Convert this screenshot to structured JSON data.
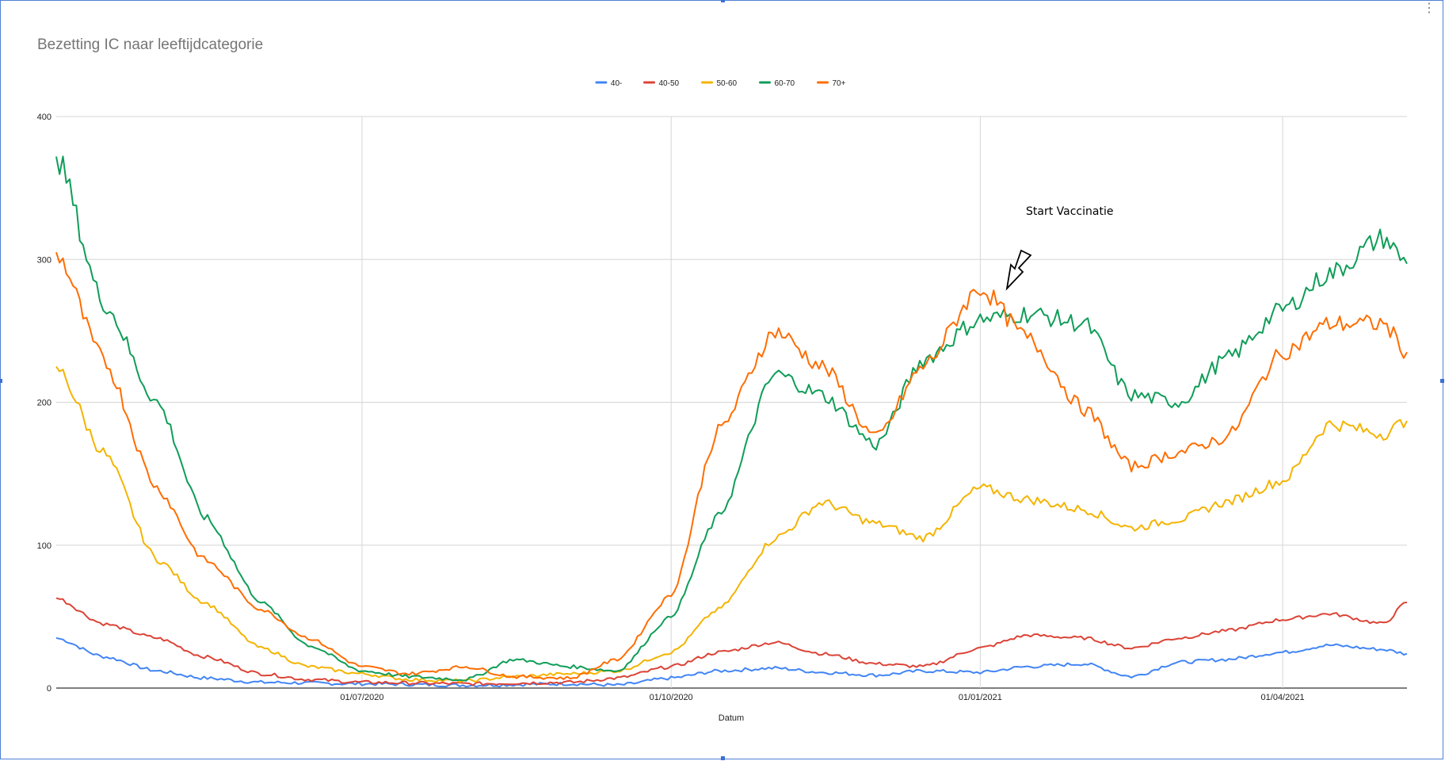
{
  "chart_data": {
    "type": "line",
    "title": "Bezetting IC naar leeftijdcategorie",
    "xlabel": "Datum",
    "ylabel": "",
    "ylim": [
      0,
      400
    ],
    "yticks": [
      0,
      100,
      200,
      300,
      400
    ],
    "xrange": [
      "2020-04-01",
      "2021-05-08"
    ],
    "xticks": [
      {
        "date": "2020-07-01",
        "label": "01/07/2020"
      },
      {
        "date": "2020-10-01",
        "label": "01/10/2020"
      },
      {
        "date": "2021-01-01",
        "label": "01/01/2021"
      },
      {
        "date": "2021-04-01",
        "label": "01/04/2021"
      }
    ],
    "grid": true,
    "legend_position": "top",
    "annotation": {
      "text": "Start Vaccinatie",
      "date": "2021-01-18",
      "value": 280
    },
    "series": [
      {
        "name": "40-",
        "color": "#4285f4",
        "points": [
          [
            "2020-04-01",
            35
          ],
          [
            "2020-04-15",
            22
          ],
          [
            "2020-05-01",
            12
          ],
          [
            "2020-05-15",
            7
          ],
          [
            "2020-06-01",
            4
          ],
          [
            "2020-07-01",
            3
          ],
          [
            "2020-08-01",
            2
          ],
          [
            "2020-09-01",
            3
          ],
          [
            "2020-09-15",
            2
          ],
          [
            "2020-10-01",
            7
          ],
          [
            "2020-10-15",
            12
          ],
          [
            "2020-11-01",
            14
          ],
          [
            "2020-11-15",
            11
          ],
          [
            "2020-12-01",
            9
          ],
          [
            "2020-12-15",
            12
          ],
          [
            "2021-01-01",
            11
          ],
          [
            "2021-01-15",
            15
          ],
          [
            "2021-02-01",
            17
          ],
          [
            "2021-02-15",
            8
          ],
          [
            "2021-03-01",
            18
          ],
          [
            "2021-03-15",
            20
          ],
          [
            "2021-04-01",
            25
          ],
          [
            "2021-04-15",
            30
          ],
          [
            "2021-05-01",
            27
          ],
          [
            "2021-05-08",
            24
          ]
        ]
      },
      {
        "name": "40-50",
        "color": "#db4437",
        "points": [
          [
            "2020-04-01",
            63
          ],
          [
            "2020-04-15",
            45
          ],
          [
            "2020-05-01",
            35
          ],
          [
            "2020-05-15",
            22
          ],
          [
            "2020-06-01",
            10
          ],
          [
            "2020-06-15",
            6
          ],
          [
            "2020-07-01",
            4
          ],
          [
            "2020-08-01",
            3
          ],
          [
            "2020-09-01",
            4
          ],
          [
            "2020-09-15",
            7
          ],
          [
            "2020-10-01",
            15
          ],
          [
            "2020-10-15",
            25
          ],
          [
            "2020-11-01",
            32
          ],
          [
            "2020-11-15",
            24
          ],
          [
            "2020-12-01",
            17
          ],
          [
            "2020-12-15",
            15
          ],
          [
            "2021-01-01",
            28
          ],
          [
            "2021-01-15",
            37
          ],
          [
            "2021-02-01",
            35
          ],
          [
            "2021-02-15",
            28
          ],
          [
            "2021-03-01",
            35
          ],
          [
            "2021-03-15",
            40
          ],
          [
            "2021-04-01",
            48
          ],
          [
            "2021-04-15",
            52
          ],
          [
            "2021-05-01",
            45
          ],
          [
            "2021-05-08",
            60
          ]
        ]
      },
      {
        "name": "50-60",
        "color": "#f4b400",
        "points": [
          [
            "2020-04-01",
            225
          ],
          [
            "2020-04-15",
            165
          ],
          [
            "2020-05-01",
            90
          ],
          [
            "2020-05-15",
            60
          ],
          [
            "2020-06-01",
            28
          ],
          [
            "2020-06-15",
            15
          ],
          [
            "2020-07-01",
            10
          ],
          [
            "2020-07-15",
            6
          ],
          [
            "2020-08-01",
            5
          ],
          [
            "2020-08-15",
            8
          ],
          [
            "2020-09-01",
            10
          ],
          [
            "2020-09-15",
            12
          ],
          [
            "2020-10-01",
            25
          ],
          [
            "2020-10-15",
            55
          ],
          [
            "2020-11-01",
            105
          ],
          [
            "2020-11-15",
            130
          ],
          [
            "2020-12-01",
            115
          ],
          [
            "2020-12-15",
            105
          ],
          [
            "2021-01-01",
            140
          ],
          [
            "2021-01-15",
            132
          ],
          [
            "2021-02-01",
            125
          ],
          [
            "2021-02-15",
            112
          ],
          [
            "2021-03-01",
            118
          ],
          [
            "2021-03-15",
            130
          ],
          [
            "2021-04-01",
            145
          ],
          [
            "2021-04-15",
            185
          ],
          [
            "2021-05-01",
            178
          ],
          [
            "2021-05-08",
            187
          ]
        ]
      },
      {
        "name": "60-70",
        "color": "#0f9d58",
        "points": [
          [
            "2020-04-01",
            372
          ],
          [
            "2020-04-15",
            270
          ],
          [
            "2020-05-01",
            200
          ],
          [
            "2020-05-15",
            120
          ],
          [
            "2020-06-01",
            60
          ],
          [
            "2020-06-15",
            30
          ],
          [
            "2020-07-01",
            12
          ],
          [
            "2020-07-15",
            8
          ],
          [
            "2020-08-01",
            6
          ],
          [
            "2020-08-15",
            20
          ],
          [
            "2020-09-01",
            15
          ],
          [
            "2020-09-15",
            12
          ],
          [
            "2020-10-01",
            50
          ],
          [
            "2020-10-15",
            120
          ],
          [
            "2020-11-01",
            220
          ],
          [
            "2020-11-15",
            205
          ],
          [
            "2020-12-01",
            170
          ],
          [
            "2020-12-15",
            230
          ],
          [
            "2021-01-01",
            258
          ],
          [
            "2021-01-15",
            262
          ],
          [
            "2021-02-01",
            255
          ],
          [
            "2021-02-15",
            205
          ],
          [
            "2021-03-01",
            200
          ],
          [
            "2021-03-15",
            230
          ],
          [
            "2021-04-01",
            265
          ],
          [
            "2021-04-15",
            290
          ],
          [
            "2021-05-01",
            315
          ],
          [
            "2021-05-08",
            297
          ]
        ]
      },
      {
        "name": "70+",
        "color": "#ff6d01",
        "points": [
          [
            "2020-04-01",
            305
          ],
          [
            "2020-04-15",
            230
          ],
          [
            "2020-05-01",
            140
          ],
          [
            "2020-05-15",
            90
          ],
          [
            "2020-06-01",
            55
          ],
          [
            "2020-06-15",
            35
          ],
          [
            "2020-07-01",
            15
          ],
          [
            "2020-07-15",
            10
          ],
          [
            "2020-08-01",
            15
          ],
          [
            "2020-08-15",
            8
          ],
          [
            "2020-09-01",
            7
          ],
          [
            "2020-09-15",
            20
          ],
          [
            "2020-10-01",
            65
          ],
          [
            "2020-10-15",
            180
          ],
          [
            "2020-11-01",
            250
          ],
          [
            "2020-11-15",
            225
          ],
          [
            "2020-12-01",
            175
          ],
          [
            "2020-12-15",
            225
          ],
          [
            "2021-01-01",
            280
          ],
          [
            "2021-01-15",
            245
          ],
          [
            "2021-02-01",
            195
          ],
          [
            "2021-02-15",
            155
          ],
          [
            "2021-03-01",
            165
          ],
          [
            "2021-03-15",
            175
          ],
          [
            "2021-04-01",
            235
          ],
          [
            "2021-04-15",
            255
          ],
          [
            "2021-05-01",
            255
          ],
          [
            "2021-05-08",
            235
          ]
        ]
      }
    ]
  }
}
